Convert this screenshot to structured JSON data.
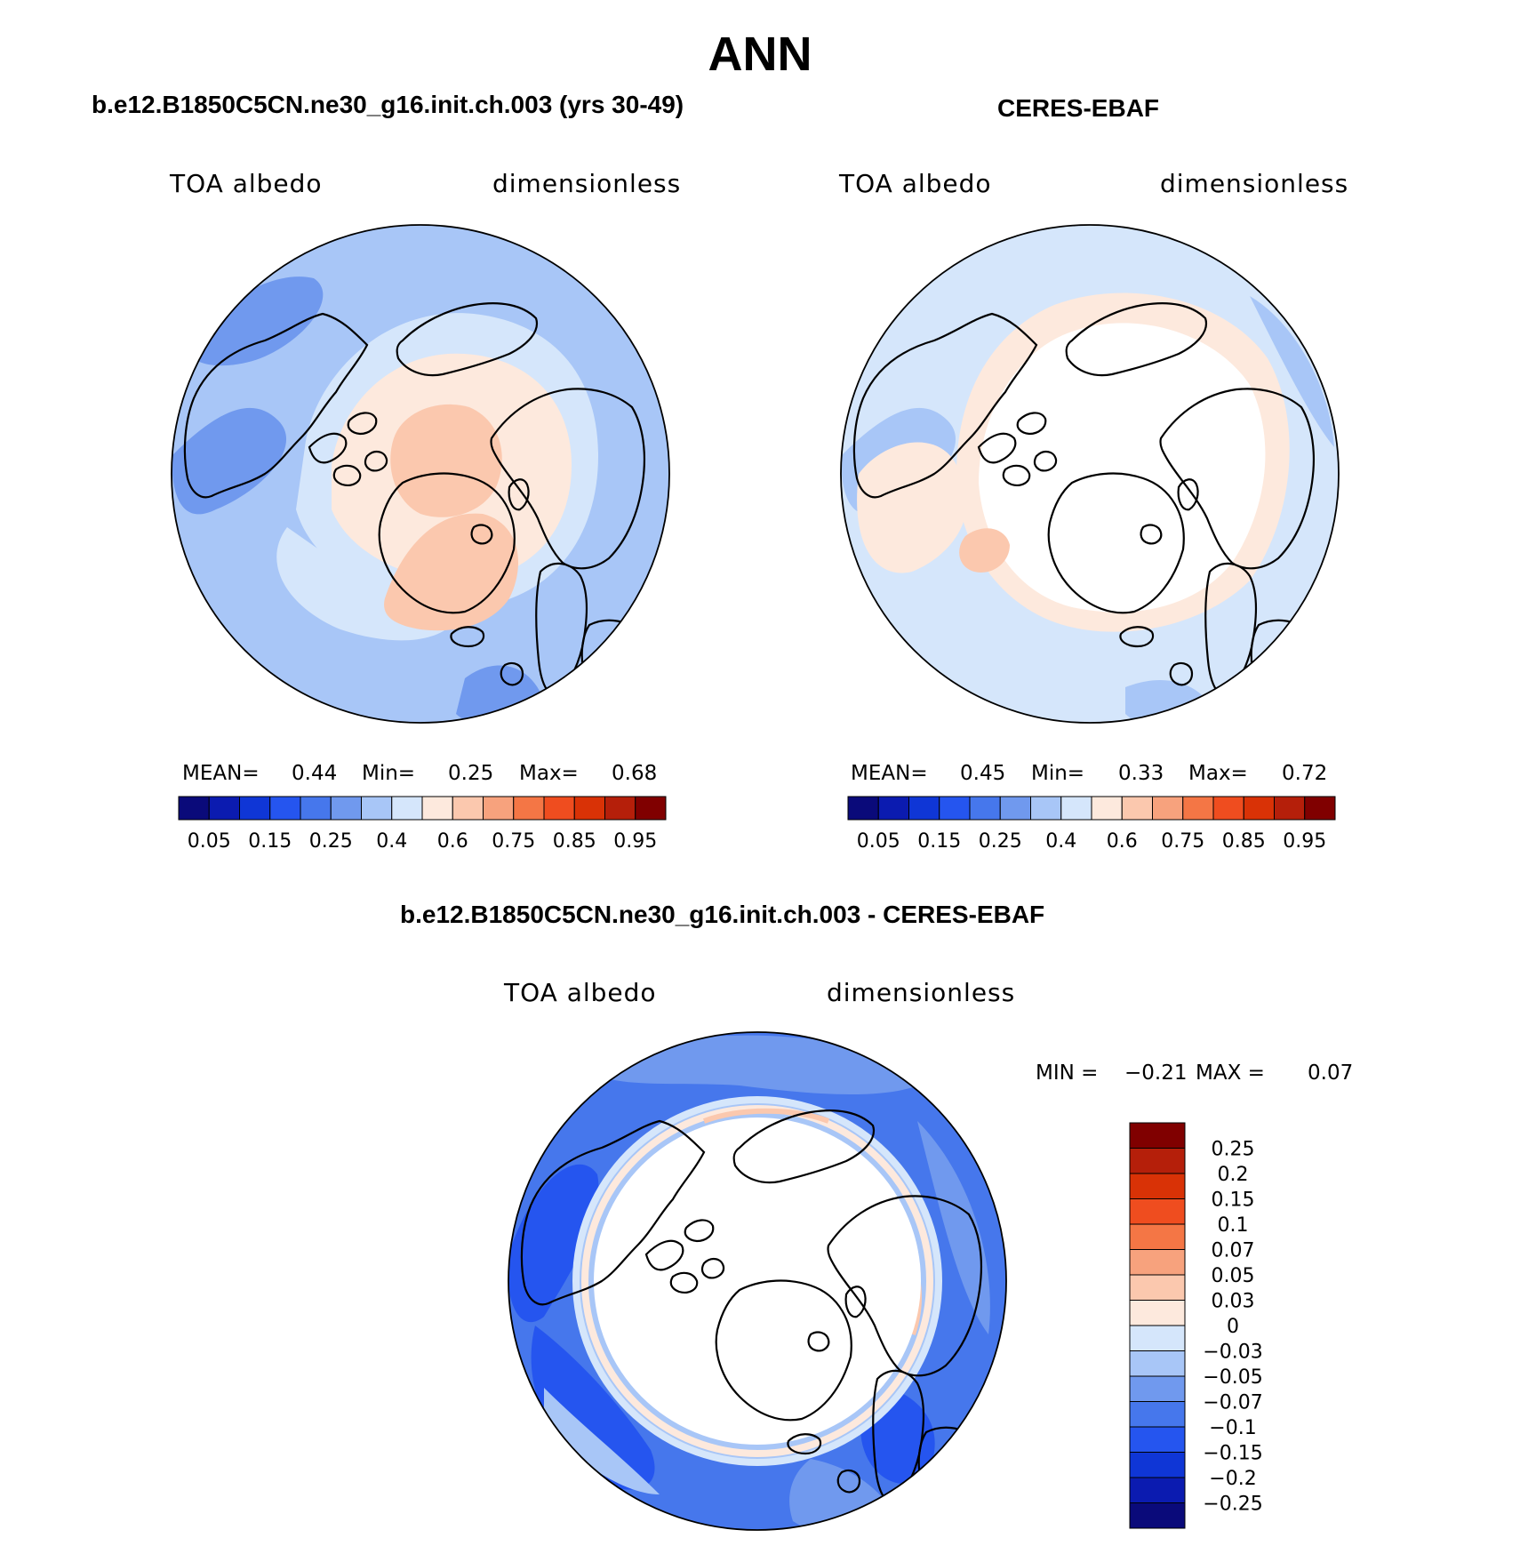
{
  "title": "ANN",
  "colors": {
    "seq": [
      "#0a0a7a",
      "#0b1bb0",
      "#0f36d6",
      "#2555ef",
      "#4677ec",
      "#7099ee",
      "#a8c6f7",
      "#d5e6fb",
      "#fde9dd",
      "#fbc8ae",
      "#f7a27d",
      "#f47645",
      "#ef4d1f",
      "#d93206",
      "#b51f0a",
      "#800000"
    ],
    "diff": [
      "#0a0a7a",
      "#0b1bb0",
      "#0f36d6",
      "#2555ef",
      "#4677ec",
      "#7099ee",
      "#a8c6f7",
      "#d5e6fb",
      "#fde9dd",
      "#fbc8ae",
      "#f7a27d",
      "#f47645",
      "#ef4d1f",
      "#d93206",
      "#b51f0a",
      "#800000"
    ]
  },
  "panels": [
    {
      "id": "model",
      "title": "b.e12.B1850C5CN.ne30_g16.init.ch.003 (yrs 30-49)",
      "variable": "TOA albedo",
      "units": "dimensionless",
      "stats": {
        "mean_label": "MEAN=",
        "mean": "0.44",
        "min_label": "Min=",
        "min": "0.25",
        "max_label": "Max=",
        "max": "0.68"
      }
    },
    {
      "id": "obs",
      "title": "CERES-EBAF",
      "variable": "TOA albedo",
      "units": "dimensionless",
      "stats": {
        "mean_label": "MEAN=",
        "mean": "0.45",
        "min_label": "Min=",
        "min": "0.33",
        "max_label": "Max=",
        "max": "0.72"
      }
    },
    {
      "id": "diff",
      "title": "b.e12.B1850C5CN.ne30_g16.init.ch.003 - CERES-EBAF",
      "variable": "TOA albedo",
      "units": "dimensionless",
      "stats": {
        "min_label": "MIN =",
        "min": "−0.21",
        "max_label": "MAX =",
        "max": "0.07"
      }
    }
  ],
  "colorbars": {
    "seq_ticks": [
      "0.05",
      "0.15",
      "0.25",
      "0.4",
      "0.6",
      "0.75",
      "0.85",
      "0.95"
    ],
    "diff_ticks": [
      "0.25",
      "0.2",
      "0.15",
      "0.1",
      "0.07",
      "0.05",
      "0.03",
      "0",
      "−0.03",
      "−0.05",
      "−0.07",
      "−0.1",
      "−0.15",
      "−0.2",
      "−0.25"
    ]
  }
}
